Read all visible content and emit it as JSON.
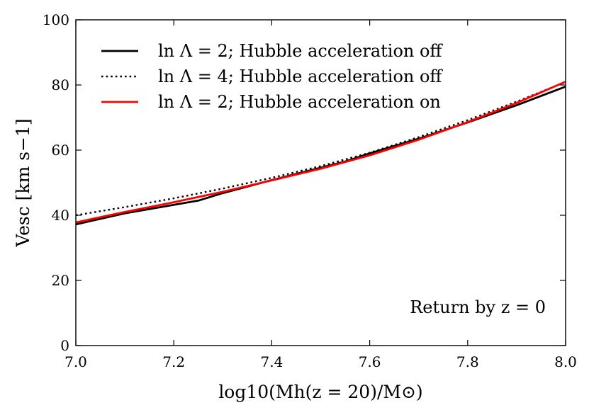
{
  "chart_data": {
    "type": "line",
    "title": "",
    "xlabel": "log10(Mh(z = 20)/M⊙)",
    "ylabel": "Vesc [km s−1]",
    "xlim": [
      7.0,
      8.0
    ],
    "ylim": [
      0,
      100
    ],
    "x_ticks": [
      "7.0",
      "7.2",
      "7.4",
      "7.6",
      "7.8",
      "8.0"
    ],
    "y_ticks": [
      "0",
      "20",
      "40",
      "60",
      "80",
      "100"
    ],
    "grid": false,
    "legend_position": "top-left",
    "annotation": "Return by z = 0",
    "series": [
      {
        "name": "ln Λ = 2; Hubble acceleration off",
        "style": "solid",
        "color": "#000000",
        "x": [
          7.0,
          7.1,
          7.2,
          7.25,
          7.3,
          7.4,
          7.5,
          7.55,
          7.6,
          7.7,
          7.8,
          7.9,
          8.0
        ],
        "y": [
          37.2,
          40.6,
          43.2,
          44.5,
          46.8,
          50.8,
          54.6,
          56.5,
          59.0,
          63.5,
          68.5,
          73.8,
          79.5
        ]
      },
      {
        "name": "ln Λ = 4; Hubble acceleration off",
        "style": "dotted",
        "color": "#000000",
        "x": [
          7.0,
          7.1,
          7.2,
          7.3,
          7.4,
          7.5,
          7.6,
          7.7,
          7.8,
          7.9,
          8.0
        ],
        "y": [
          40.0,
          42.5,
          45.2,
          48.2,
          51.5,
          55.1,
          59.2,
          64.0,
          69.2,
          74.9,
          80.9
        ]
      },
      {
        "name": "ln Λ = 2; Hubble acceleration on",
        "style": "solid",
        "color": "#ff0000",
        "x": [
          7.0,
          7.1,
          7.2,
          7.3,
          7.4,
          7.5,
          7.6,
          7.7,
          7.8,
          7.9,
          8.0
        ],
        "y": [
          37.8,
          41.0,
          44.0,
          47.2,
          50.7,
          54.3,
          58.4,
          63.2,
          68.6,
          74.5,
          81.0
        ]
      }
    ]
  }
}
